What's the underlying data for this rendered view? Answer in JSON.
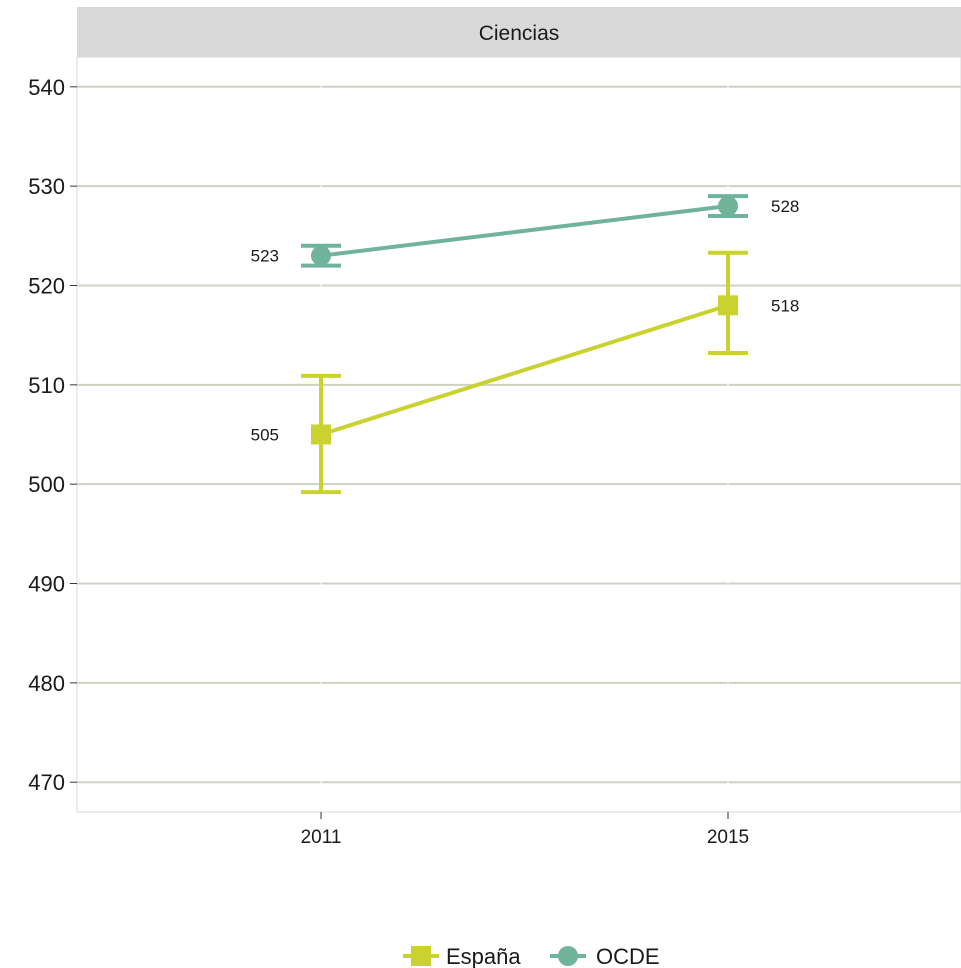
{
  "chart_data": {
    "type": "line",
    "panel_title": "Ciencias",
    "x": [
      "2011",
      "2015"
    ],
    "ylim": [
      467,
      543
    ],
    "yticks": [
      470,
      480,
      490,
      500,
      510,
      520,
      530,
      540
    ],
    "grid": true,
    "legend_position": "bottom",
    "series": [
      {
        "name": "España",
        "marker": "square",
        "color": "#c9d22f",
        "values": [
          505,
          518
        ],
        "error_low": [
          499.2,
          513.2
        ],
        "error_high": [
          510.9,
          523.3
        ],
        "labels": [
          "505",
          "518"
        ]
      },
      {
        "name": "OCDE",
        "marker": "circle",
        "color": "#6fb39a",
        "values": [
          523,
          528
        ],
        "error_low": [
          522.0,
          527.0
        ],
        "error_high": [
          524.0,
          529.0
        ],
        "labels": [
          "523",
          "528"
        ]
      }
    ]
  }
}
